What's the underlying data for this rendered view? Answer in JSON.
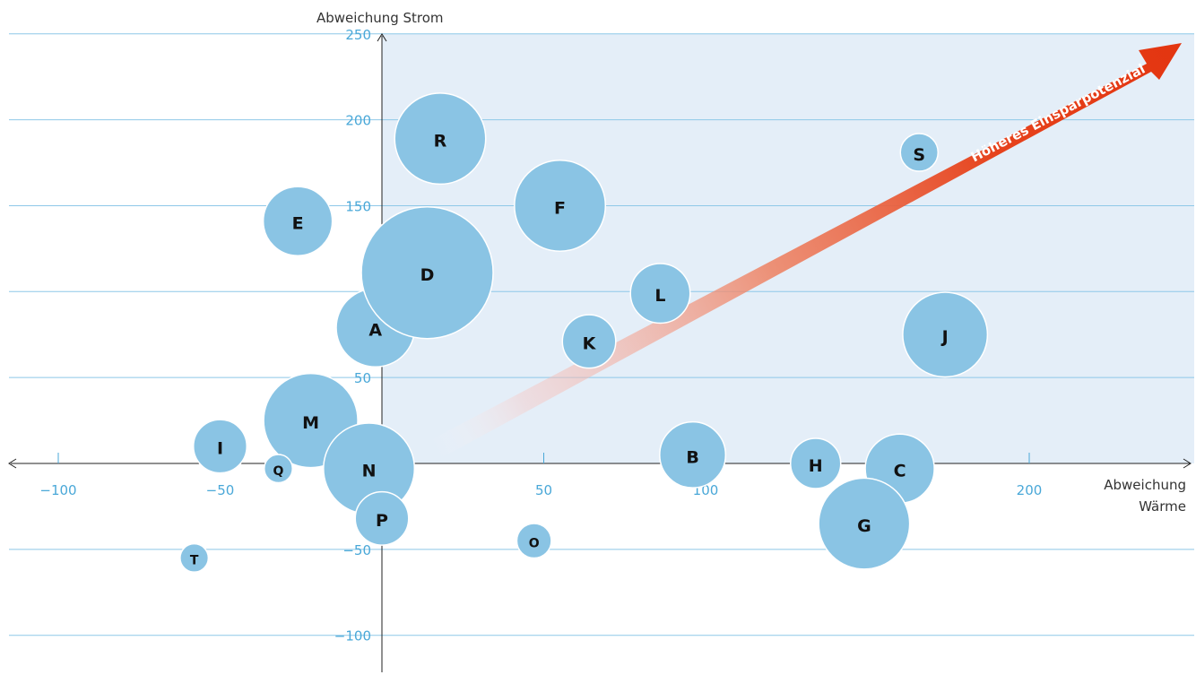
{
  "chart_data": {
    "type": "scatter",
    "subtype": "bubble",
    "xlabel": "Abweichung Wärme",
    "ylabel": "Abweichung Strom",
    "xlim": [
      -115,
      250
    ],
    "ylim": [
      -122,
      250
    ],
    "xticks": [
      -100,
      -50,
      50,
      100,
      200
    ],
    "yticks": [
      250,
      200,
      150,
      50,
      -50,
      -100
    ],
    "grid": true,
    "highlight_quadrant": "x>0, y>0",
    "annotation": "Höheres Einsparpotenzial",
    "colors": {
      "bubble": "#8ac4e4",
      "grid": "#8ec8e8",
      "quadrant": "#e4eef8",
      "tick": "#4aa8d8",
      "arrow": "#e33510"
    },
    "points": [
      {
        "label": "A",
        "x": -2,
        "y": 79,
        "size": 25
      },
      {
        "label": "B",
        "x": 96,
        "y": 5,
        "size": 21
      },
      {
        "label": "C",
        "x": 160,
        "y": -3,
        "size": 22
      },
      {
        "label": "D",
        "x": 14,
        "y": 111,
        "size": 42
      },
      {
        "label": "E",
        "x": -26,
        "y": 141,
        "size": 22
      },
      {
        "label": "F",
        "x": 55,
        "y": 150,
        "size": 29
      },
      {
        "label": "G",
        "x": 149,
        "y": -35,
        "size": 29
      },
      {
        "label": "H",
        "x": 134,
        "y": 0,
        "size": 16
      },
      {
        "label": "I",
        "x": -50,
        "y": 10,
        "size": 17
      },
      {
        "label": "J",
        "x": 174,
        "y": 75,
        "size": 27
      },
      {
        "label": "K",
        "x": 64,
        "y": 71,
        "size": 17
      },
      {
        "label": "L",
        "x": 86,
        "y": 99,
        "size": 19
      },
      {
        "label": "M",
        "x": -22,
        "y": 25,
        "size": 30
      },
      {
        "label": "N",
        "x": -4,
        "y": -3,
        "size": 29
      },
      {
        "label": "O",
        "x": 47,
        "y": -45,
        "size": 11
      },
      {
        "label": "P",
        "x": 0,
        "y": -32,
        "size": 17
      },
      {
        "label": "Q",
        "x": -32,
        "y": -3,
        "size": 9
      },
      {
        "label": "R",
        "x": 18,
        "y": 189,
        "size": 29
      },
      {
        "label": "S",
        "x": 166,
        "y": 181,
        "size": 12
      },
      {
        "label": "T",
        "x": -58,
        "y": -55,
        "size": 9
      }
    ]
  }
}
